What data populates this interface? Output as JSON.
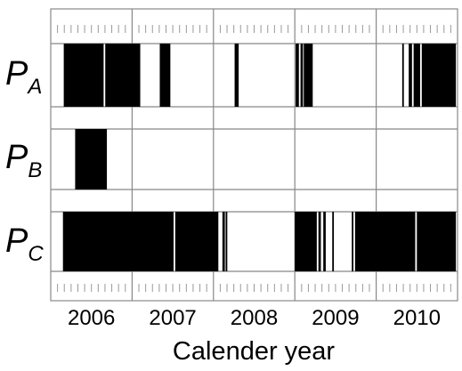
{
  "chart_data": {
    "type": "timeline",
    "xlabel": "Calender year",
    "years": [
      "2006",
      "2007",
      "2008",
      "2009",
      "2010"
    ],
    "year_span": [
      2006,
      2011
    ],
    "rows": [
      {
        "label_main": "P",
        "label_sub": "A",
        "active_intervals": [
          [
            2006.16,
            2006.65
          ],
          [
            2006.67,
            2007.1
          ],
          [
            2007.34,
            2007.47
          ],
          [
            2008.26,
            2008.31
          ],
          [
            2009.01,
            2009.05
          ],
          [
            2009.07,
            2009.1
          ],
          [
            2009.11,
            2009.22
          ],
          [
            2010.32,
            2010.34
          ],
          [
            2010.4,
            2010.44
          ],
          [
            2010.46,
            2010.54
          ],
          [
            2010.56,
            2010.98
          ]
        ]
      },
      {
        "label_main": "P",
        "label_sub": "B",
        "active_intervals": [
          [
            2006.3,
            2006.69
          ]
        ]
      },
      {
        "label_main": "P",
        "label_sub": "C",
        "active_intervals": [
          [
            2006.15,
            2007.51
          ],
          [
            2007.53,
            2008.06
          ],
          [
            2008.11,
            2008.14
          ],
          [
            2008.15,
            2008.17
          ],
          [
            2009.0,
            2009.27
          ],
          [
            2009.29,
            2009.32
          ],
          [
            2009.35,
            2009.38
          ],
          [
            2009.46,
            2009.48
          ],
          [
            2009.7,
            2009.72
          ],
          [
            2009.74,
            2010.48
          ],
          [
            2010.5,
            2010.98
          ]
        ]
      }
    ],
    "grid": true
  }
}
